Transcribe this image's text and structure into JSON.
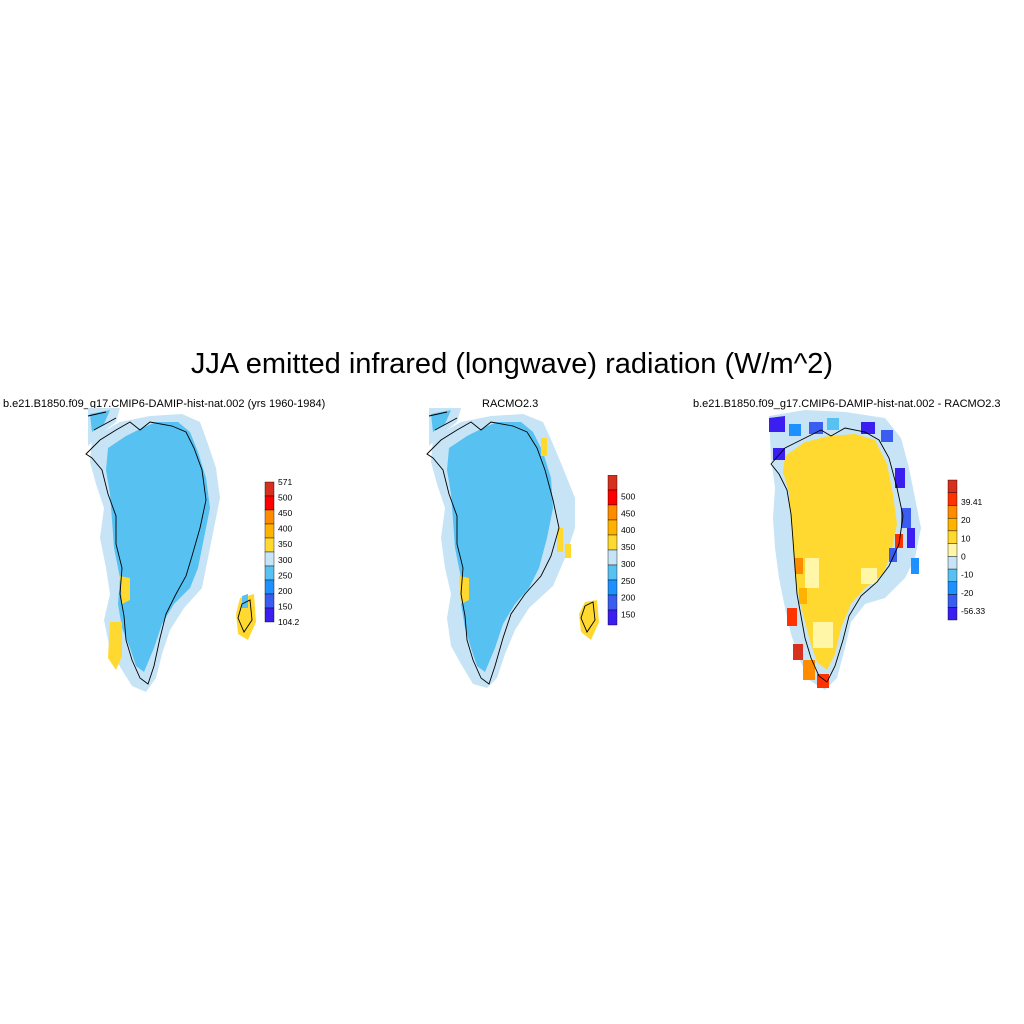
{
  "title": "JJA emitted infrared (longwave) radiation (W/m^2)",
  "chart_data": [
    {
      "type": "heatmap",
      "title": "b.e21.B1850.f09_g17.CMIP6-DAMIP-hist-nat.002 (yrs 1960-1984)",
      "colorbar": {
        "labels": [
          "571",
          "500",
          "450",
          "400",
          "350",
          "300",
          "250",
          "200",
          "150",
          "104.2"
        ],
        "colors": [
          "#d7301f",
          "#ff0000",
          "#ff8c00",
          "#ffb300",
          "#ffd92f",
          "#c6e4f5",
          "#57c1f2",
          "#1e90ff",
          "#3b5cf0",
          "#3a1ff0"
        ],
        "range": [
          104.2,
          571
        ]
      }
    },
    {
      "type": "heatmap",
      "title": "RACMO2.3",
      "colorbar": {
        "labels": [
          "500",
          "450",
          "400",
          "350",
          "300",
          "250",
          "200",
          "150"
        ],
        "colors": [
          "#d7301f",
          "#ff0000",
          "#ff8c00",
          "#ffb300",
          "#ffd92f",
          "#c6e4f5",
          "#57c1f2",
          "#1e90ff",
          "#3b5cf0",
          "#3a1ff0"
        ]
      }
    },
    {
      "type": "heatmap",
      "title": "b.e21.B1850.f09_g17.CMIP6-DAMIP-hist-nat.002 - RACMO2.3",
      "colorbar": {
        "labels": [
          "39.41",
          "20",
          "10",
          "0",
          "-10",
          "-20",
          "-56.33"
        ],
        "colors": [
          "#d7301f",
          "#ff3300",
          "#ff8c00",
          "#ffb300",
          "#ffd92f",
          "#fff6a8",
          "#c6e4f5",
          "#57c1f2",
          "#1e90ff",
          "#3b5cf0",
          "#3a1ff0"
        ],
        "range": [
          -56.33,
          39.41
        ]
      }
    }
  ]
}
